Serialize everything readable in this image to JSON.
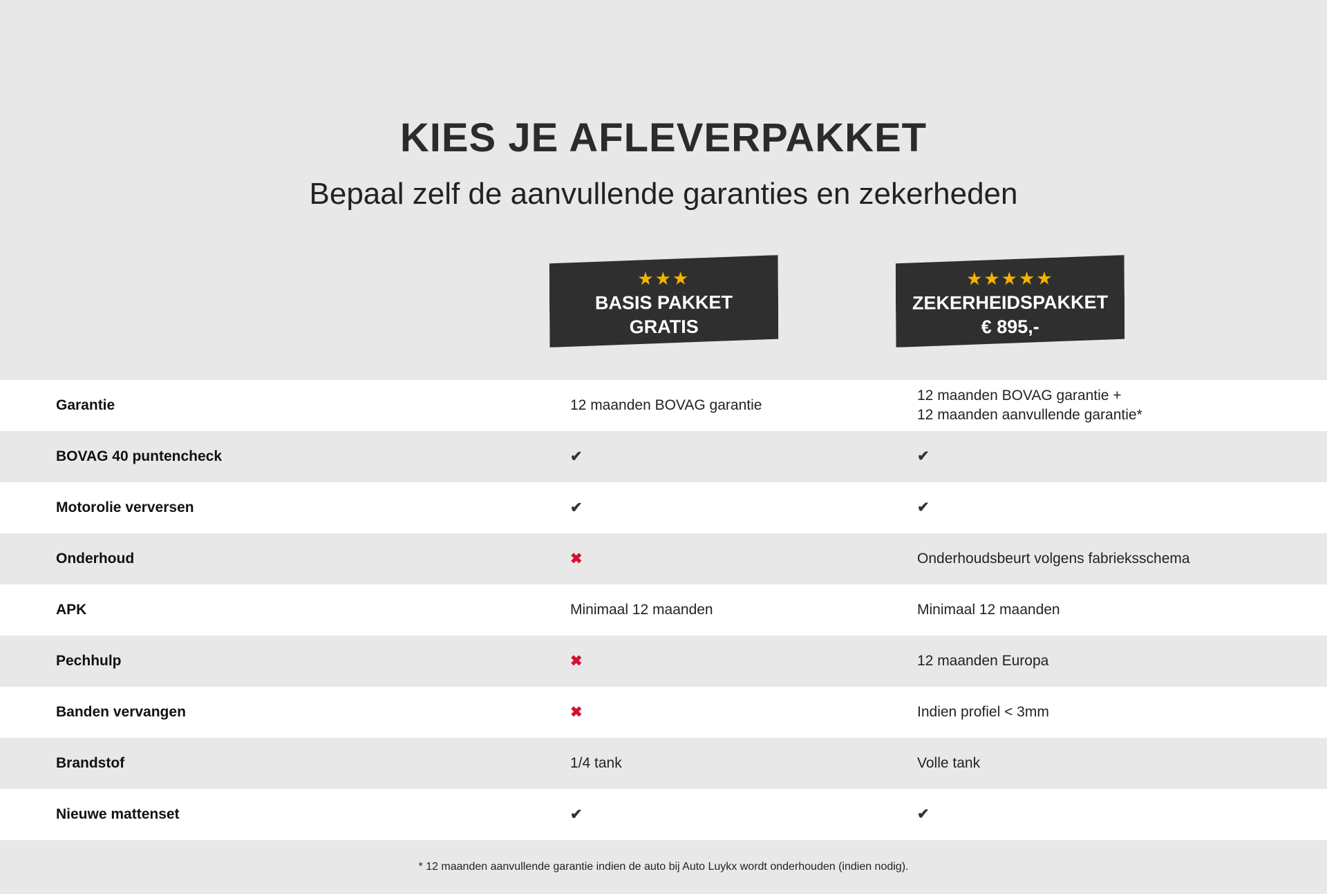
{
  "title": "KIES JE AFLEVERPAKKET",
  "subtitle": "Bepaal zelf de aanvullende garanties en zekerheden",
  "packages": [
    {
      "stars": 3,
      "star_text": "★★★",
      "name": "BASIS PAKKET",
      "price": "GRATIS"
    },
    {
      "stars": 5,
      "star_text": "★★★★★",
      "name": "ZEKERHEIDSPAKKET",
      "price": "€ 895,-"
    }
  ],
  "icons": {
    "check": "✔",
    "cross": "✖"
  },
  "colors": {
    "badge": "#2f2f2f",
    "star": "#f5b400",
    "cross": "#d5102f"
  },
  "rows": [
    {
      "label": "Garantie",
      "basis": "12 maanden BOVAG garantie",
      "zekerheid": "12 maanden BOVAG garantie +",
      "zekerheid2": "12 maanden aanvullende garantie*"
    },
    {
      "label": "BOVAG 40 puntencheck",
      "basis": "check-icon",
      "zekerheid": "check-icon"
    },
    {
      "label": "Motorolie verversen",
      "basis": "check-icon",
      "zekerheid": "check-icon"
    },
    {
      "label": "Onderhoud",
      "basis": "cross-icon",
      "zekerheid": "Onderhoudsbeurt volgens fabrieksschema"
    },
    {
      "label": "APK",
      "basis": "Minimaal 12 maanden",
      "zekerheid": "Minimaal 12 maanden"
    },
    {
      "label": "Pechhulp",
      "basis": "cross-icon",
      "zekerheid": "12 maanden Europa"
    },
    {
      "label": "Banden vervangen",
      "basis": "cross-icon",
      "zekerheid": "Indien profiel < 3mm"
    },
    {
      "label": "Brandstof",
      "basis": "1/4 tank",
      "zekerheid": "Volle tank"
    },
    {
      "label": "Nieuwe mattenset",
      "basis": "check-icon",
      "zekerheid": "check-icon"
    }
  ],
  "footnote": "* 12 maanden aanvullende garantie indien de auto bij Auto Luykx wordt onderhouden (indien nodig)."
}
